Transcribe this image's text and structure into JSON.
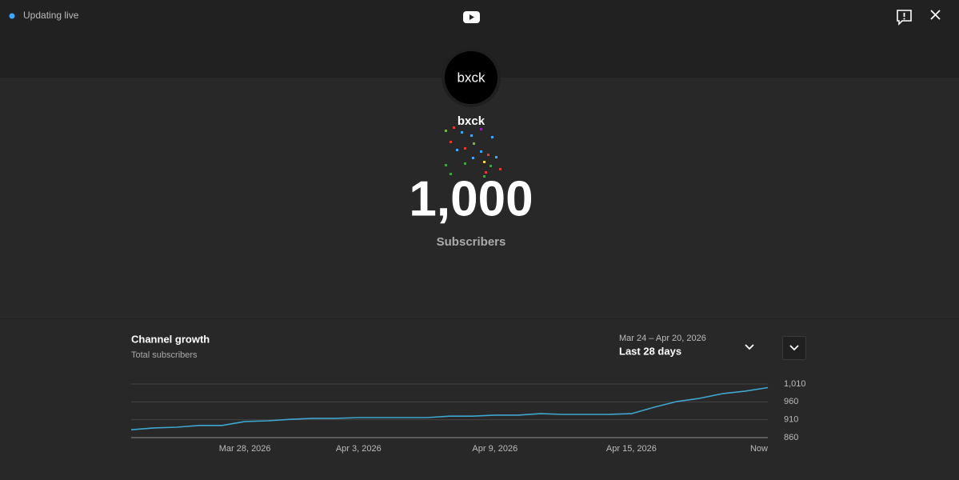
{
  "header": {
    "status": "Updating live"
  },
  "channel": {
    "avatar_text": "bxck",
    "name": "bxck",
    "subscriber_count": "1,000",
    "subscriber_label": "Subscribers"
  },
  "growth_panel": {
    "date_range": "Mar 24 – Apr 20, 2026",
    "period": "Last 28 days"
  },
  "chart_data": {
    "type": "line",
    "title": "Channel growth",
    "subtitle": "Total subscribers",
    "categories": [
      null,
      null,
      null,
      null,
      null,
      "Mar 28, 2026",
      null,
      null,
      null,
      null,
      "Apr 3, 2026",
      null,
      null,
      null,
      null,
      null,
      "Apr 9, 2026",
      null,
      null,
      null,
      null,
      null,
      "Apr 15, 2026",
      null,
      null,
      null,
      null,
      null,
      "Now"
    ],
    "values": [
      882,
      887,
      889,
      894,
      894,
      905,
      907,
      911,
      914,
      914,
      916,
      916,
      916,
      916,
      920,
      920,
      923,
      923,
      927,
      925,
      925,
      925,
      927,
      945,
      961,
      970,
      983,
      990,
      1000
    ],
    "color": "#3ea6cf",
    "ylim": [
      860,
      1010
    ],
    "yticks": [
      860,
      910,
      960,
      {
        "value": 1010,
        "label": "1,010"
      }
    ],
    "grid": true
  }
}
